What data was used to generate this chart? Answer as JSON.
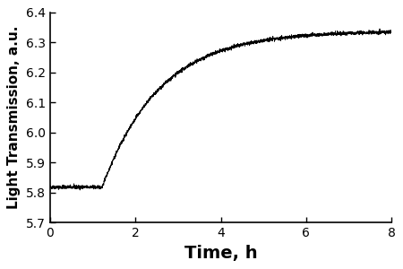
{
  "xlabel": "Time, h",
  "ylabel": "Light Transmission, a.u.",
  "xlim": [
    0,
    8
  ],
  "ylim": [
    5.7,
    6.4
  ],
  "xticks": [
    0,
    2,
    4,
    6,
    8
  ],
  "yticks": [
    5.7,
    5.8,
    5.9,
    6.0,
    6.1,
    6.2,
    6.3,
    6.4
  ],
  "line_color": "#000000",
  "background_color": "#ffffff",
  "initial_value": 5.818,
  "plateau_value": 6.338,
  "step_time": 1.22,
  "tau": 1.35,
  "noise_amplitude": 0.003,
  "n_points": 3000,
  "xlabel_fontsize": 14,
  "ylabel_fontsize": 11,
  "tick_labelsize": 10
}
